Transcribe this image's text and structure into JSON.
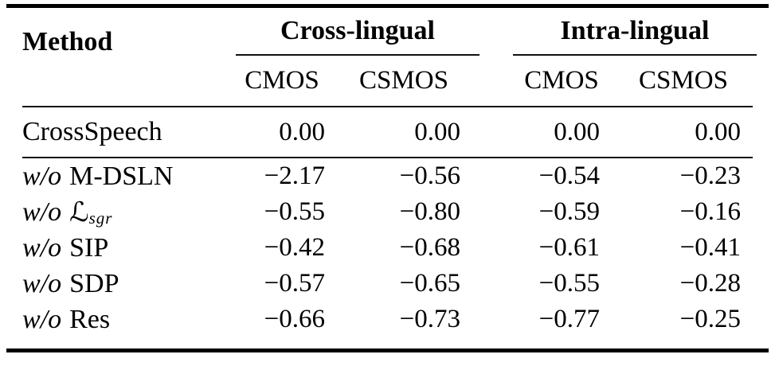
{
  "colors": {
    "text": "#000000",
    "background": "#ffffff",
    "rule": "#000000"
  },
  "table": {
    "method_header": "Method",
    "groups": [
      {
        "label": "Cross-lingual",
        "subcols": [
          "CMOS",
          "CSMOS"
        ]
      },
      {
        "label": "Intra-lingual",
        "subcols": [
          "CMOS",
          "CSMOS"
        ]
      }
    ],
    "baseline_row": {
      "prefix": "",
      "name": "CrossSpeech",
      "subscript": "",
      "values": [
        "0.00",
        "0.00",
        "0.00",
        "0.00"
      ]
    },
    "ablation_rows": [
      {
        "prefix": "w/o",
        "name": "M-DSLN",
        "subscript": "",
        "values": [
          "−2.17",
          "−0.56",
          "−0.54",
          "−0.23"
        ]
      },
      {
        "prefix": "w/o",
        "name": "ℒ",
        "subscript": "sgr",
        "values": [
          "−0.55",
          "−0.80",
          "−0.59",
          "−0.16"
        ]
      },
      {
        "prefix": "w/o",
        "name": "SIP",
        "subscript": "",
        "values": [
          "−0.42",
          "−0.68",
          "−0.61",
          "−0.41"
        ]
      },
      {
        "prefix": "w/o",
        "name": "SDP",
        "subscript": "",
        "values": [
          "−0.57",
          "−0.65",
          "−0.55",
          "−0.28"
        ]
      },
      {
        "prefix": "w/o",
        "name": "Res",
        "subscript": "",
        "values": [
          "−0.66",
          "−0.73",
          "−0.77",
          "−0.25"
        ]
      }
    ]
  }
}
